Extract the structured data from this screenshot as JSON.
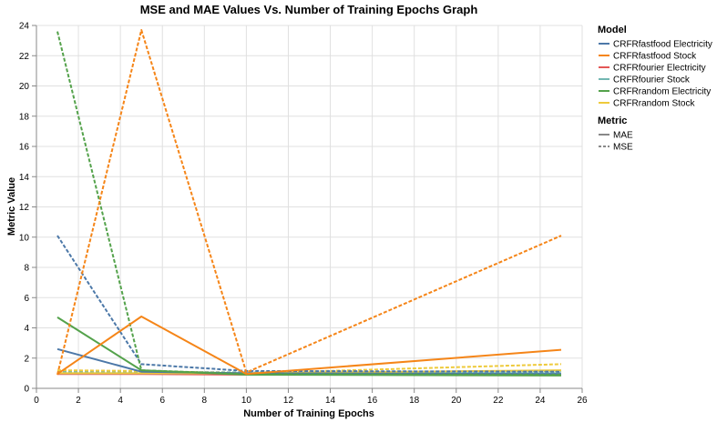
{
  "chart_data": {
    "type": "line",
    "title": "MSE and MAE Values Vs. Number of Training Epochs Graph",
    "xlabel": "Number of Training Epochs",
    "ylabel": "Metric Value",
    "xlim": [
      0,
      26
    ],
    "ylim": [
      0,
      24
    ],
    "x_ticks": [
      0,
      2,
      4,
      6,
      8,
      10,
      12,
      14,
      16,
      18,
      20,
      22,
      24,
      26
    ],
    "y_ticks": [
      0,
      2,
      4,
      6,
      8,
      10,
      12,
      14,
      16,
      18,
      20,
      22,
      24
    ],
    "grid": true,
    "legend": {
      "placement": "right",
      "model_title": "Model",
      "metric_title": "Metric",
      "models": [
        {
          "name": "CRFRfastfood Electricity",
          "color": "#4c78a8"
        },
        {
          "name": "CRFRfastfood Stock",
          "color": "#f58518"
        },
        {
          "name": "CRFRfourier Electricity",
          "color": "#e45756"
        },
        {
          "name": "CRFRfourier Stock",
          "color": "#72b7b2"
        },
        {
          "name": "CRFRrandom Electricity",
          "color": "#54a24b"
        },
        {
          "name": "CRFRrandom Stock",
          "color": "#eeca3b"
        }
      ],
      "metrics": [
        {
          "name": "MAE",
          "dash": "solid"
        },
        {
          "name": "MSE",
          "dash": "dashed"
        }
      ]
    },
    "x": [
      1,
      5,
      10,
      25
    ],
    "series": [
      {
        "model": "CRFRfourier Electricity",
        "metric": "MAE",
        "color": "#e45756",
        "dash": "solid",
        "values": [
          0.95,
          0.95,
          0.9,
          0.9
        ]
      },
      {
        "model": "CRFRfourier Electricity",
        "metric": "MSE",
        "color": "#e45756",
        "dash": "dashed",
        "values": [
          1.05,
          1.0,
          0.95,
          0.95
        ]
      },
      {
        "model": "CRFRfourier Stock",
        "metric": "MAE",
        "color": "#72b7b2",
        "dash": "solid",
        "values": [
          1.0,
          1.0,
          1.0,
          1.0
        ]
      },
      {
        "model": "CRFRfourier Stock",
        "metric": "MSE",
        "color": "#72b7b2",
        "dash": "dashed",
        "values": [
          1.1,
          1.1,
          1.05,
          1.15
        ]
      },
      {
        "model": "CRFRrandom Stock",
        "metric": "MAE",
        "color": "#eeca3b",
        "dash": "solid",
        "values": [
          1.0,
          1.0,
          1.0,
          1.2
        ]
      },
      {
        "model": "CRFRrandom Stock",
        "metric": "MSE",
        "color": "#eeca3b",
        "dash": "dashed",
        "values": [
          1.2,
          1.15,
          1.0,
          1.6
        ]
      },
      {
        "model": "CRFRfastfood Electricity",
        "metric": "MAE",
        "color": "#4c78a8",
        "dash": "solid",
        "values": [
          2.6,
          1.1,
          1.0,
          0.95
        ]
      },
      {
        "model": "CRFRfastfood Electricity",
        "metric": "MSE",
        "color": "#4c78a8",
        "dash": "dashed",
        "values": [
          10.1,
          1.6,
          1.15,
          1.1
        ]
      },
      {
        "model": "CRFRrandom Electricity",
        "metric": "MAE",
        "color": "#54a24b",
        "dash": "solid",
        "values": [
          4.7,
          1.2,
          0.9,
          0.85
        ]
      },
      {
        "model": "CRFRrandom Electricity",
        "metric": "MSE",
        "color": "#54a24b",
        "dash": "dashed",
        "values": [
          23.6,
          1.2,
          0.95,
          0.9
        ]
      },
      {
        "model": "CRFRfastfood Stock",
        "metric": "MAE",
        "color": "#f58518",
        "dash": "solid",
        "values": [
          0.95,
          4.75,
          0.95,
          2.55
        ]
      },
      {
        "model": "CRFRfastfood Stock",
        "metric": "MSE",
        "color": "#f58518",
        "dash": "dashed",
        "values": [
          0.9,
          23.7,
          1.05,
          10.1
        ]
      }
    ]
  }
}
